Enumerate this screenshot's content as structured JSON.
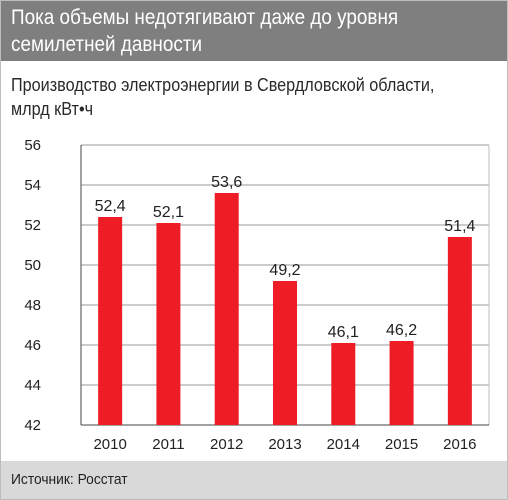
{
  "header": {
    "title_line1": "Пока объемы недотягивают даже до уровня",
    "title_line2": "семилетней давности",
    "background_color": "#7f7f7f"
  },
  "chart_data": {
    "type": "bar",
    "title": "Производство электроэнергии в Свердловской области,",
    "unit_line": "млрд кВт•ч",
    "categories": [
      "2010",
      "2011",
      "2012",
      "2013",
      "2014",
      "2015",
      "2016"
    ],
    "values": [
      52.4,
      52.1,
      53.6,
      49.2,
      46.1,
      46.2,
      51.4
    ],
    "value_labels": [
      "52,4",
      "52,1",
      "53,6",
      "49,2",
      "46,1",
      "46,2",
      "51,4"
    ],
    "ylim": [
      42,
      56
    ],
    "yticks": [
      42,
      44,
      46,
      48,
      50,
      52,
      54,
      56
    ],
    "grid": true,
    "legend": "none",
    "bar_color": "#ee1c25",
    "grid_color": "#9a9a9a"
  },
  "footer": {
    "source": "Источник: Росстат",
    "background_color": "#d9d9d9"
  }
}
